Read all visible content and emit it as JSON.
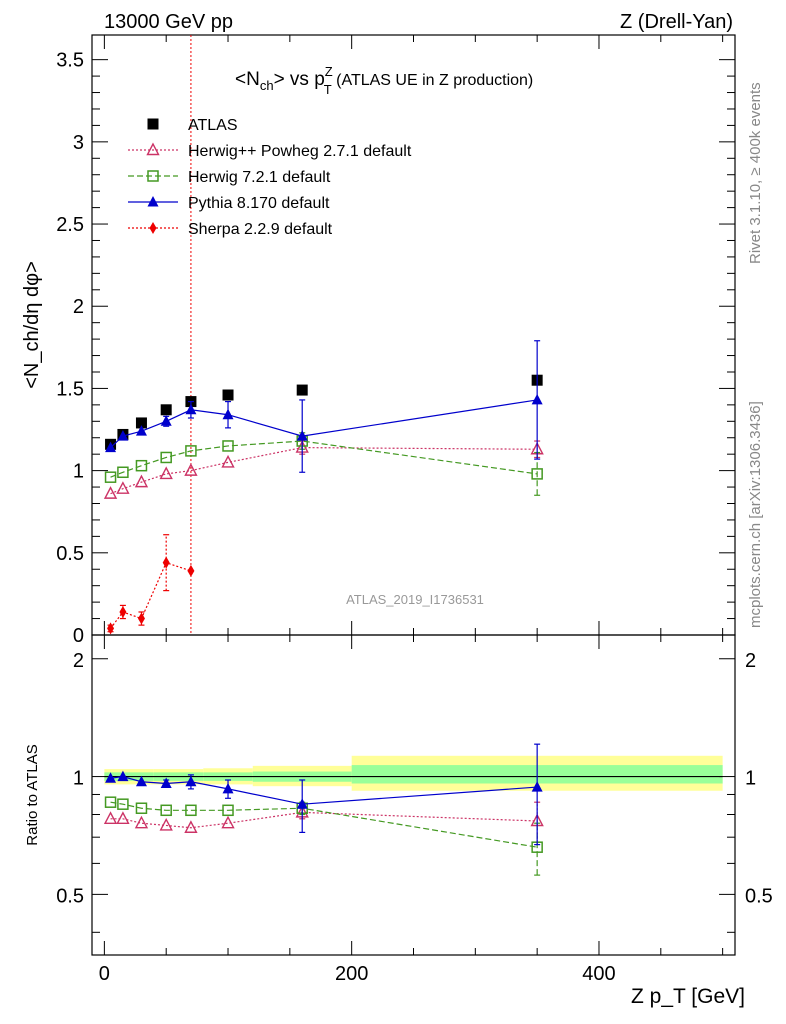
{
  "header": {
    "left": "13000 GeV pp",
    "right": "Z (Drell-Yan)"
  },
  "plot_title": {
    "main": "<N",
    "sub1": "ch",
    "mid": "> vs p",
    "sup": "Z",
    "sub2": "T",
    "tail": " (ATLAS UE in Z production)"
  },
  "side_labels": {
    "rivet": "Rivet 3.1.10, ≥ 400k events",
    "mcplots": "mcplots.cern.ch [arXiv:1306.3436]"
  },
  "analysis_id": "ATLAS_2019_I1736531",
  "axes": {
    "y_main": "<N_ch/dη dφ>",
    "y_ratio": "Ratio to ATLAS",
    "x": "Z p_T [GeV]",
    "y_main_ticks": [
      "0",
      "0.5",
      "1",
      "1.5",
      "2",
      "2.5",
      "3",
      "3.5"
    ],
    "y_ratio_ticks": [
      "0.5",
      "1",
      "2"
    ],
    "x_ticks": [
      "0",
      "200",
      "400"
    ]
  },
  "chart_data": [
    {
      "type": "scatter",
      "panel": "main",
      "xlim": [
        -10,
        510
      ],
      "ylim": [
        0,
        3.65
      ],
      "marker_line_x": 70,
      "x": [
        5,
        15,
        30,
        50,
        70,
        100,
        160,
        350
      ],
      "series": [
        {
          "name": "ATLAS",
          "color": "#000000",
          "marker": "square-filled",
          "line": "none",
          "values": [
            1.16,
            1.22,
            1.29,
            1.37,
            1.42,
            1.46,
            1.49,
            1.55
          ],
          "errors": [
            0,
            0,
            0,
            0,
            0,
            0,
            0,
            0
          ]
        },
        {
          "name": "Herwig++ Powheg 2.7.1 default",
          "color": "#cc3366",
          "marker": "triangle-open",
          "line": "dotted",
          "values": [
            0.86,
            0.89,
            0.93,
            0.98,
            1.0,
            1.05,
            1.14,
            1.13
          ],
          "errors": [
            0,
            0,
            0,
            0,
            0,
            0,
            0.04,
            0.05
          ]
        },
        {
          "name": "Herwig 7.2.1 default",
          "color": "#449922",
          "marker": "square-open",
          "line": "dashed",
          "values": [
            0.96,
            0.99,
            1.03,
            1.08,
            1.12,
            1.15,
            1.18,
            0.98
          ],
          "errors": [
            0,
            0,
            0,
            0,
            0,
            0,
            0.05,
            0.13
          ]
        },
        {
          "name": "Pythia 8.170 default",
          "color": "#0000cc",
          "marker": "triangle-filled",
          "line": "solid",
          "values": [
            1.14,
            1.21,
            1.24,
            1.3,
            1.37,
            1.34,
            1.21,
            1.43
          ],
          "errors": [
            0,
            0,
            0,
            0.03,
            0.05,
            0.08,
            0.22,
            0.36
          ]
        },
        {
          "name": "Sherpa 2.2.9 default",
          "color": "#ee0000",
          "marker": "diamond-filled",
          "line": "dotted",
          "x": [
            5,
            15,
            30,
            50,
            70
          ],
          "values": [
            0.04,
            0.14,
            0.1,
            0.44,
            0.39
          ],
          "errors": [
            0.02,
            0.04,
            0.04,
            0.17,
            0.0
          ]
        }
      ]
    },
    {
      "type": "scatter",
      "panel": "ratio",
      "xlim": [
        -10,
        510
      ],
      "ylim": [
        0.35,
        2.3
      ],
      "scale": "log",
      "x": [
        5,
        15,
        30,
        50,
        70,
        100,
        160,
        350
      ],
      "bands": [
        {
          "x0": 0,
          "x1": 40,
          "inner": [
            0.975,
            1.025
          ],
          "outer": [
            0.955,
            1.045
          ]
        },
        {
          "x0": 40,
          "x1": 80,
          "inner": [
            0.975,
            1.025
          ],
          "outer": [
            0.955,
            1.045
          ]
        },
        {
          "x0": 80,
          "x1": 120,
          "inner": [
            0.975,
            1.025
          ],
          "outer": [
            0.955,
            1.05
          ]
        },
        {
          "x0": 120,
          "x1": 200,
          "inner": [
            0.97,
            1.03
          ],
          "outer": [
            0.945,
            1.065
          ]
        },
        {
          "x0": 200,
          "x1": 500,
          "inner": [
            0.96,
            1.07
          ],
          "outer": [
            0.92,
            1.13
          ]
        }
      ],
      "series": [
        {
          "name": "Herwig++ Powheg 2.7.1 default",
          "color": "#cc3366",
          "marker": "triangle-open",
          "line": "dotted",
          "values": [
            0.78,
            0.78,
            0.76,
            0.75,
            0.74,
            0.76,
            0.81,
            0.77
          ],
          "errors": [
            0,
            0,
            0,
            0,
            0,
            0,
            0.03,
            0.09
          ]
        },
        {
          "name": "Herwig 7.2.1 default",
          "color": "#449922",
          "marker": "square-open",
          "line": "dashed",
          "values": [
            0.86,
            0.85,
            0.83,
            0.82,
            0.82,
            0.82,
            0.83,
            0.66
          ],
          "errors": [
            0,
            0,
            0,
            0,
            0,
            0,
            0.03,
            0.1
          ]
        },
        {
          "name": "Pythia 8.170 default",
          "color": "#0000cc",
          "marker": "triangle-filled",
          "line": "solid",
          "values": [
            0.99,
            1.0,
            0.97,
            0.96,
            0.97,
            0.93,
            0.85,
            0.94
          ],
          "errors": [
            0,
            0,
            0,
            0.02,
            0.04,
            0.05,
            0.13,
            0.27
          ]
        }
      ]
    }
  ]
}
